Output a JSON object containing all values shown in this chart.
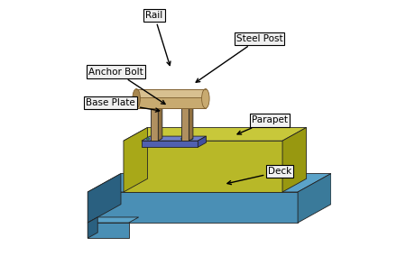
{
  "bg_color": "#ffffff",
  "deck_top_color": "#5ba3c9",
  "deck_front_color": "#4a8fb5",
  "deck_right_color": "#3a7a9a",
  "deck_side_color": "#2a6080",
  "parapet_top_color": "#c8c83a",
  "parapet_front_color": "#b8b828",
  "parapet_right_color": "#989810",
  "parapet_left_color": "#a8a818",
  "baseplate_top_color": "#7080c8",
  "baseplate_front_color": "#5060b0",
  "baseplate_right_color": "#4050a0",
  "post_front_color": "#b09060",
  "post_right_color": "#907040",
  "post_top_color": "#c0a070",
  "rail_body_color": "#c8aa70",
  "rail_top_color": "#d8c090",
  "rail_end_color": "#a88850",
  "bolt_color": "#408060",
  "annots": [
    {
      "label": "Rail",
      "tgt": [
        0.375,
        0.73
      ],
      "txt": [
        0.31,
        0.94
      ]
    },
    {
      "label": "Steel Post",
      "tgt": [
        0.46,
        0.67
      ],
      "txt": [
        0.72,
        0.85
      ]
    },
    {
      "label": "Anchor Bolt",
      "tgt": [
        0.365,
        0.585
      ],
      "txt": [
        0.16,
        0.72
      ]
    },
    {
      "label": "Base Plate",
      "tgt": [
        0.345,
        0.565
      ],
      "txt": [
        0.14,
        0.6
      ]
    },
    {
      "label": "Parapet",
      "tgt": [
        0.62,
        0.47
      ],
      "txt": [
        0.76,
        0.53
      ]
    },
    {
      "label": "Deck",
      "tgt": [
        0.58,
        0.28
      ],
      "txt": [
        0.8,
        0.33
      ]
    }
  ]
}
